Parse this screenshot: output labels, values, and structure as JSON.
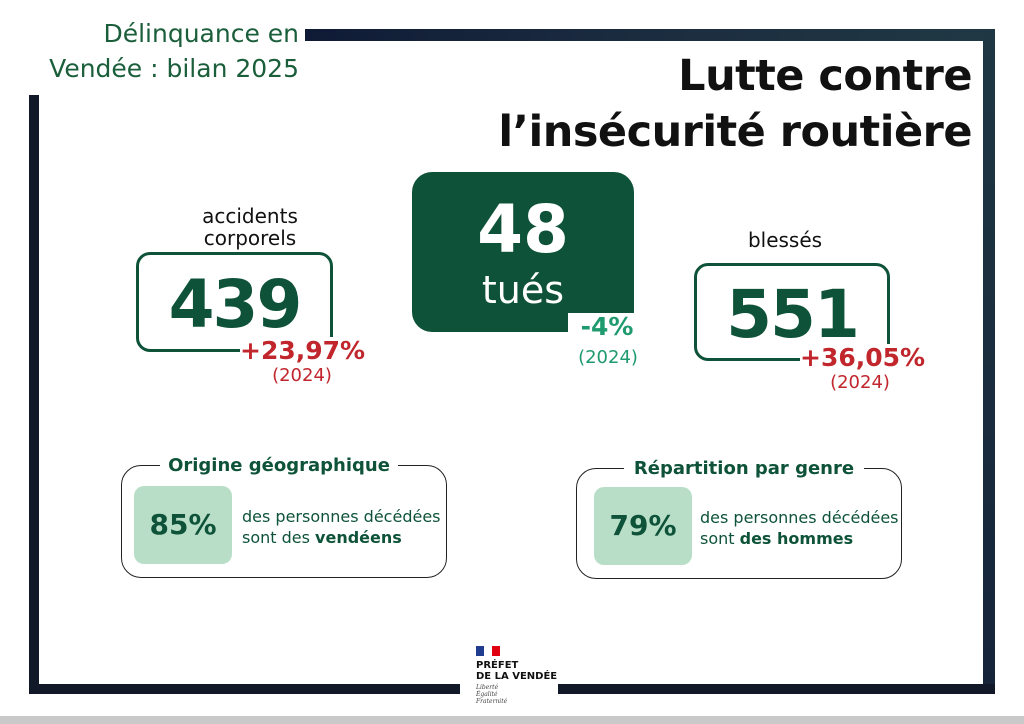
{
  "header": {
    "kicker_line1": "Délinquance en",
    "kicker_line2": "Vendée : bilan 2025",
    "title_line1": "Lutte contre",
    "title_line2": "l’insécurité routière"
  },
  "stats": {
    "accidents": {
      "label_line1": "accidents",
      "label_line2": "corporels",
      "value": "439",
      "change": "+23,97%",
      "year": "(2024)"
    },
    "killed": {
      "value": "48",
      "label": "tués",
      "change": "-4%",
      "year": "(2024)"
    },
    "injured": {
      "label": "blessés",
      "value": "551",
      "change": "+36,05%",
      "year": "(2024)"
    }
  },
  "cards": {
    "origin": {
      "title": "Origine géographique",
      "percent": "85%",
      "text_line1": "des personnes décédées",
      "text_line2_prefix": "sont des ",
      "text_line2_bold": "vendéens"
    },
    "gender": {
      "title": "Répartition par genre",
      "percent": "79%",
      "text_line1": "des personnes décédées",
      "text_line2_prefix": "sont ",
      "text_line2_bold": "des hommes"
    }
  },
  "logo": {
    "line1": "PRÉFET",
    "line2": "DE LA VENDÉE",
    "motto1": "Liberté",
    "motto2": "Égalité",
    "motto3": "Fraternité"
  },
  "colors": {
    "brand_green": "#0e5339",
    "increase_red": "#c0262c",
    "decrease_green": "#1e9a6e",
    "tile_green": "#b8dec8"
  }
}
